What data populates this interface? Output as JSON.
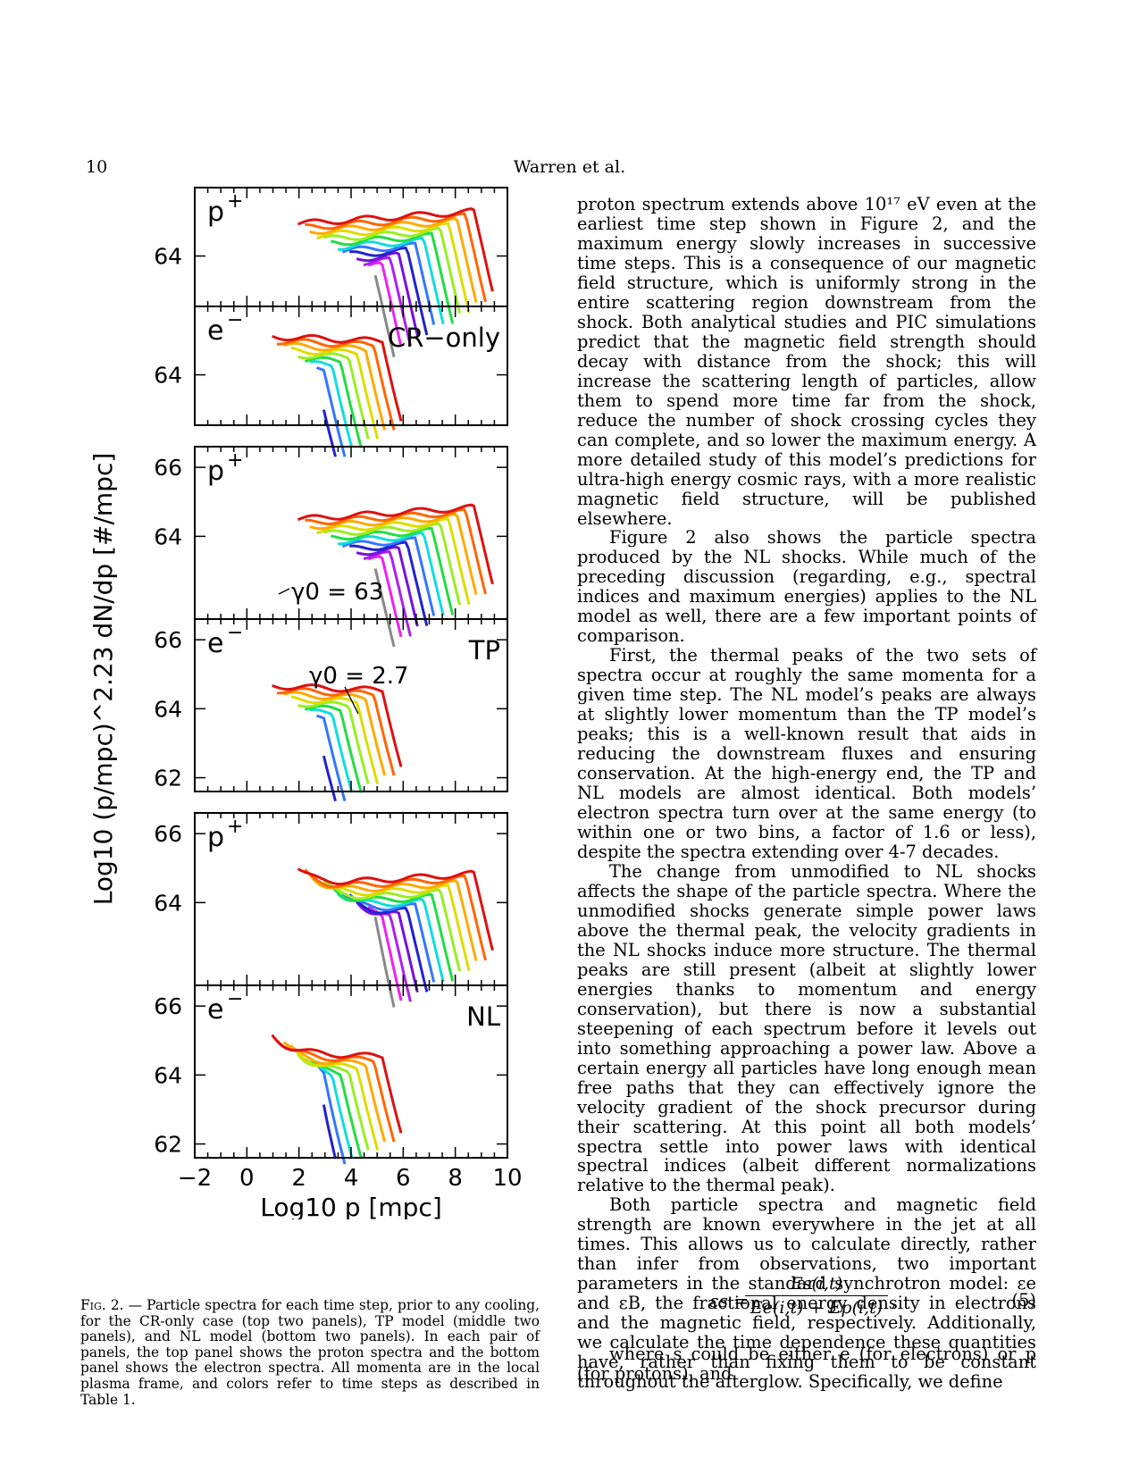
{
  "header": {
    "page_number": "10",
    "running_head": "Warren et al."
  },
  "colors": {
    "series": [
      "#dd1111",
      "#ff6600",
      "#ffaa00",
      "#dddd00",
      "#99ee22",
      "#22dd44",
      "#11dddd",
      "#3377ff",
      "#2222cc",
      "#7711dd",
      "#aa22ee",
      "#ee22ee",
      "#888888"
    ]
  },
  "chart_data": [
    {
      "type": "line",
      "title": "",
      "panel": "p+",
      "model_label": "",
      "ylabel": "Log10 (p/mpc)^2.23 dN/dp [#/mpc]",
      "xlabel": "Log10 p [mpc]",
      "yticks_labeled": [
        "64"
      ],
      "xlim": [
        -2,
        10
      ]
    },
    {
      "type": "line",
      "title": "",
      "panel": "e−",
      "model_label": "CR−only",
      "yticks_labeled": [
        "64"
      ],
      "xlim": [
        -2,
        10
      ]
    },
    {
      "type": "line",
      "title": "",
      "panel": "p+",
      "model_label": "",
      "annotation": "γ0 = 63",
      "yticks_labeled": [
        "66",
        "64"
      ],
      "xlim": [
        -2,
        10
      ]
    },
    {
      "type": "line",
      "title": "",
      "panel": "e−",
      "model_label": "TP",
      "annotation": "γ0 = 2.7",
      "yticks_labeled": [
        "66",
        "64",
        "62"
      ],
      "xlim": [
        -2,
        10
      ]
    },
    {
      "type": "line",
      "title": "",
      "panel": "p+",
      "model_label": "",
      "yticks_labeled": [
        "66",
        "64"
      ],
      "xlim": [
        -2,
        10
      ]
    },
    {
      "type": "line",
      "title": "",
      "panel": "e−",
      "model_label": "NL",
      "yticks_labeled": [
        "66",
        "64",
        "62"
      ],
      "xlim": [
        -2,
        10
      ],
      "xticks": [
        "−2",
        "0",
        "2",
        "4",
        "6",
        "8",
        "10"
      ]
    }
  ],
  "figure": {
    "ylabel": "Log10 (p/mpc)^2.23 dN/dp [#/mpc]",
    "xlabel": "Log10 p [mpc]",
    "xticks": [
      "−2",
      "0",
      "2",
      "4",
      "6",
      "8",
      "10"
    ],
    "panels": [
      {
        "particle": "p",
        "charge": "+",
        "label": "",
        "yticks": [
          {
            "v": 64
          }
        ],
        "annot": ""
      },
      {
        "particle": "e",
        "charge": "−",
        "label": "CR−only",
        "yticks": [
          {
            "v": 64
          }
        ],
        "annot": ""
      },
      {
        "particle": "p",
        "charge": "+",
        "label": "",
        "yticks": [
          {
            "v": 66
          },
          {
            "v": 64
          }
        ],
        "annot": "γ0 = 63"
      },
      {
        "particle": "e",
        "charge": "−",
        "label": "TP",
        "yticks": [
          {
            "v": 66
          },
          {
            "v": 64
          },
          {
            "v": 62
          }
        ],
        "annot": "γ0 = 2.7"
      },
      {
        "particle": "p",
        "charge": "+",
        "label": "",
        "yticks": [
          {
            "v": 66
          },
          {
            "v": 64
          }
        ],
        "annot": ""
      },
      {
        "particle": "e",
        "charge": "−",
        "label": "NL",
        "yticks": [
          {
            "v": 66
          },
          {
            "v": 64
          },
          {
            "v": 62
          }
        ],
        "annot": ""
      }
    ]
  },
  "caption": {
    "fig_label": "Fig. 2.",
    "text": "— Particle spectra for each time step, prior to any cooling, for the CR-only case (top two panels), TP model (middle two panels), and NL model (bottom two panels). In each pair of panels, the top panel shows the proton spectra and the bottom panel shows the electron spectra. All momenta are in the local plasma frame, and colors refer to time steps as described in Table 1."
  },
  "body": {
    "p1": "proton spectrum extends above 10¹⁷ eV even at the earliest time step shown in Figure 2, and the maximum energy slowly increases in successive time steps. This is a consequence of our magnetic field structure, which is uniformly strong in the entire scattering region downstream from the shock. Both analytical studies and PIC simulations predict that the magnetic field strength should decay with distance from the shock; this will increase the scattering length of particles, allow them to spend more time far from the shock, reduce the number of shock crossing cycles they can complete, and so lower the maximum energy. A more detailed study of this model’s predictions for ultra-high energy cosmic rays, with a more realistic magnetic field structure, will be published elsewhere.",
    "p2": "Figure 2 also shows the particle spectra produced by the NL shocks. While much of the preceding discussion (regarding, e.g., spectral indices and maximum energies) applies to the NL model as well, there are a few important points of comparison.",
    "p3": "First, the thermal peaks of the two sets of spectra occur at roughly the same momenta for a given time step. The NL model’s peaks are always at slightly lower momentum than the TP model’s peaks; this is a well-known result that aids in reducing the downstream fluxes and ensuring conservation. At the high-energy end, the TP and NL models are almost identical. Both models’ electron spectra turn over at the same energy (to within one or two bins, a factor of 1.6 or less), despite the spectra extending over 4-7 decades.",
    "p4": "The change from unmodified to NL shocks affects the shape of the particle spectra. Where the unmodified shocks generate simple power laws above the thermal peak, the velocity gradients in the NL shocks induce more structure. The thermal peaks are still present (albeit at slightly lower energies thanks to momentum and energy conservation), but there is now a substantial steepening of each spectrum before it levels out into something approaching a power law. Above a certain energy all particles have long enough mean free paths that they can effectively ignore the velocity gradient of the shock precursor during their scattering. At this point all both models’ spectra settle into power laws with identical spectral indices (albeit different normalizations relative to the thermal peak).",
    "p5": "Both particle spectra and magnetic field strength are known everywhere in the jet at all times. This allows us to calculate directly, rather than infer from observations, two important parameters in the standard synchrotron model: εe and εB, the fractional energy density in electrons and the magnetic field, respectively. Additionally, we calculate the time dependence these quantities have, rather than fixing them to be constant throughout the afterglow. Specifically, we define",
    "eq_lhs": "εs =",
    "eq_num": "Es(i,t)",
    "eq_den": "Ee(i,t) + Ep(i,t)",
    "eq_tail": ",",
    "eq_number": "(5)",
    "p6": "where s could be either e (for electrons) or p (for protons), and"
  }
}
